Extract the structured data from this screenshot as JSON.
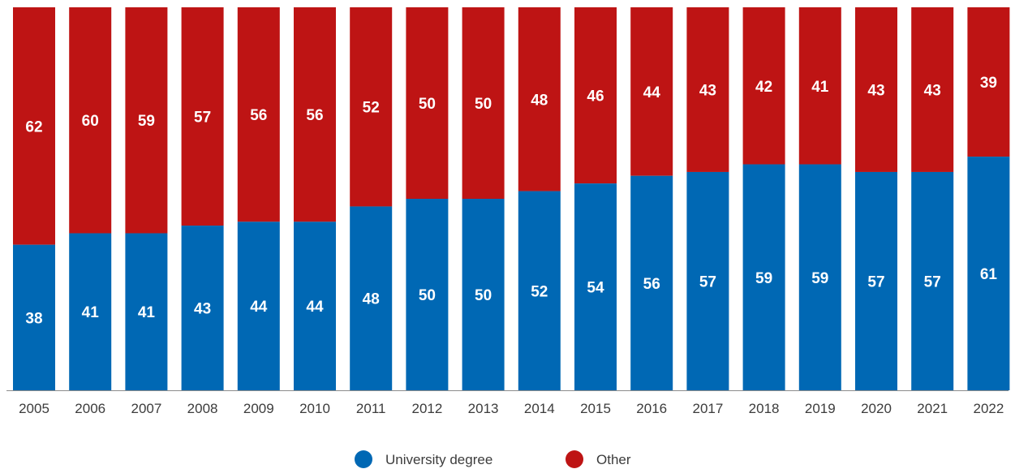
{
  "chart_data": {
    "type": "bar",
    "stacked": true,
    "categories": [
      "2005",
      "2006",
      "2007",
      "2008",
      "2009",
      "2010",
      "2011",
      "2012",
      "2013",
      "2014",
      "2015",
      "2016",
      "2017",
      "2018",
      "2019",
      "2020",
      "2021",
      "2022"
    ],
    "series": [
      {
        "name": "University degree",
        "color": "#0068b4",
        "values": [
          38,
          41,
          41,
          43,
          44,
          44,
          48,
          50,
          50,
          52,
          54,
          56,
          57,
          59,
          59,
          57,
          57,
          61
        ]
      },
      {
        "name": "Other",
        "color": "#be1414",
        "values": [
          62,
          60,
          59,
          57,
          56,
          56,
          52,
          50,
          50,
          48,
          46,
          44,
          43,
          42,
          41,
          43,
          43,
          39
        ]
      }
    ],
    "ylim": [
      0,
      100
    ],
    "grid": false,
    "legend_position": "bottom",
    "data_labels": true
  }
}
